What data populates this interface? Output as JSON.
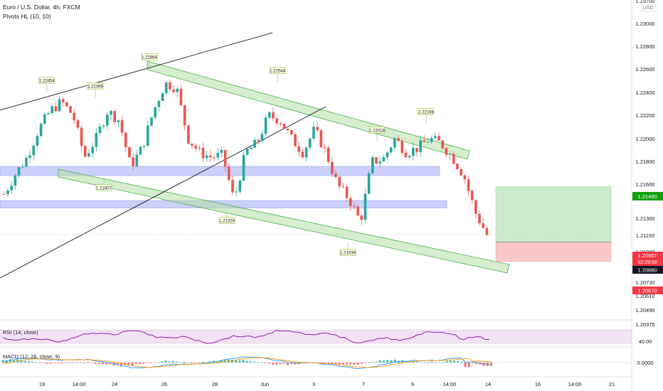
{
  "header": {
    "symbol_line": "Euro / U.S. Dollar, 4h, FXCM",
    "indicator_line": "Pivots HL (10, 10)"
  },
  "currency": "USD",
  "colors": {
    "up": "#26a69a",
    "down": "#ef5350",
    "channel_fill": "#b5dfa8",
    "channel_stroke": "#4caf50",
    "zone_fill": "#b7bef7",
    "profit_fill": "#cdebcb",
    "loss_fill": "#f9c7c7",
    "rsi": "#8e24aa",
    "macd": "#2196f3",
    "signal": "#ff9800",
    "target_label": "#13a10e",
    "stop_label": "#f23645",
    "entry_label": "#131722"
  },
  "price_axis": {
    "ticks": [
      "1.23000",
      "1.22800",
      "1.22600",
      "1.22400",
      "1.22200",
      "1.22000",
      "1.21800",
      "1.21600",
      "1.21300",
      "1.21150",
      "1.20730",
      "1.20610",
      "1.20490",
      "1.20375"
    ],
    "top_partial": "1.23700"
  },
  "price_badges": {
    "target": "1.21480",
    "last": "1.20967",
    "countdown": "02:29:00",
    "entry": "1.20880",
    "stop": "1.20670",
    "partial": "1.21000"
  },
  "time_axis": [
    "19",
    "14:00",
    "24",
    "26",
    "28",
    "Jun",
    "3",
    "7",
    "9",
    "14:00",
    "14",
    "16",
    "14:00",
    "21"
  ],
  "pivot_labels": [
    "1.22454",
    "1.22399",
    "1.22664",
    "1.22544",
    "1.22018",
    "1.22188",
    "1.21607",
    "1.21329",
    "1.21039"
  ],
  "rsi": {
    "label": "RSI (14, close)",
    "level": "40.00"
  },
  "macd": {
    "label": "MACD (12, 26, close, 9)",
    "level": "0.0000"
  },
  "chart_data": {
    "type": "candlestick",
    "symbol": "Euro / U.S. Dollar",
    "timeframe": "4h",
    "source": "FXCM",
    "ohlc_trend": [
      1.214,
      1.2162,
      1.218,
      1.221,
      1.223,
      1.224,
      1.2225,
      1.218,
      1.22,
      1.223,
      1.222,
      1.217,
      1.219,
      1.223,
      1.226,
      1.2255,
      1.22,
      1.2185,
      1.218,
      1.2182,
      1.2133,
      1.2185,
      1.2195,
      1.2225,
      1.222,
      1.22,
      1.2185,
      1.221,
      1.2185,
      1.215,
      1.2135,
      1.211,
      1.2175,
      1.2178,
      1.22,
      1.2185,
      1.219,
      1.22,
      1.2195,
      1.218,
      1.216,
      1.212,
      1.2096
    ],
    "pivots_high": [
      1.22454,
      1.22399,
      1.22664,
      1.22544,
      1.22018,
      1.22188
    ],
    "pivots_low": [
      1.21607,
      1.21329,
      1.21039
    ],
    "zones": [
      [
        1.216,
        1.217
      ],
      [
        1.2125,
        1.2133
      ]
    ],
    "position": {
      "target": 1.2148,
      "entry": 1.2088,
      "stop": 1.2067
    },
    "last_price": 1.20967,
    "rsi_level": 40.0,
    "macd_level": 0.0
  }
}
